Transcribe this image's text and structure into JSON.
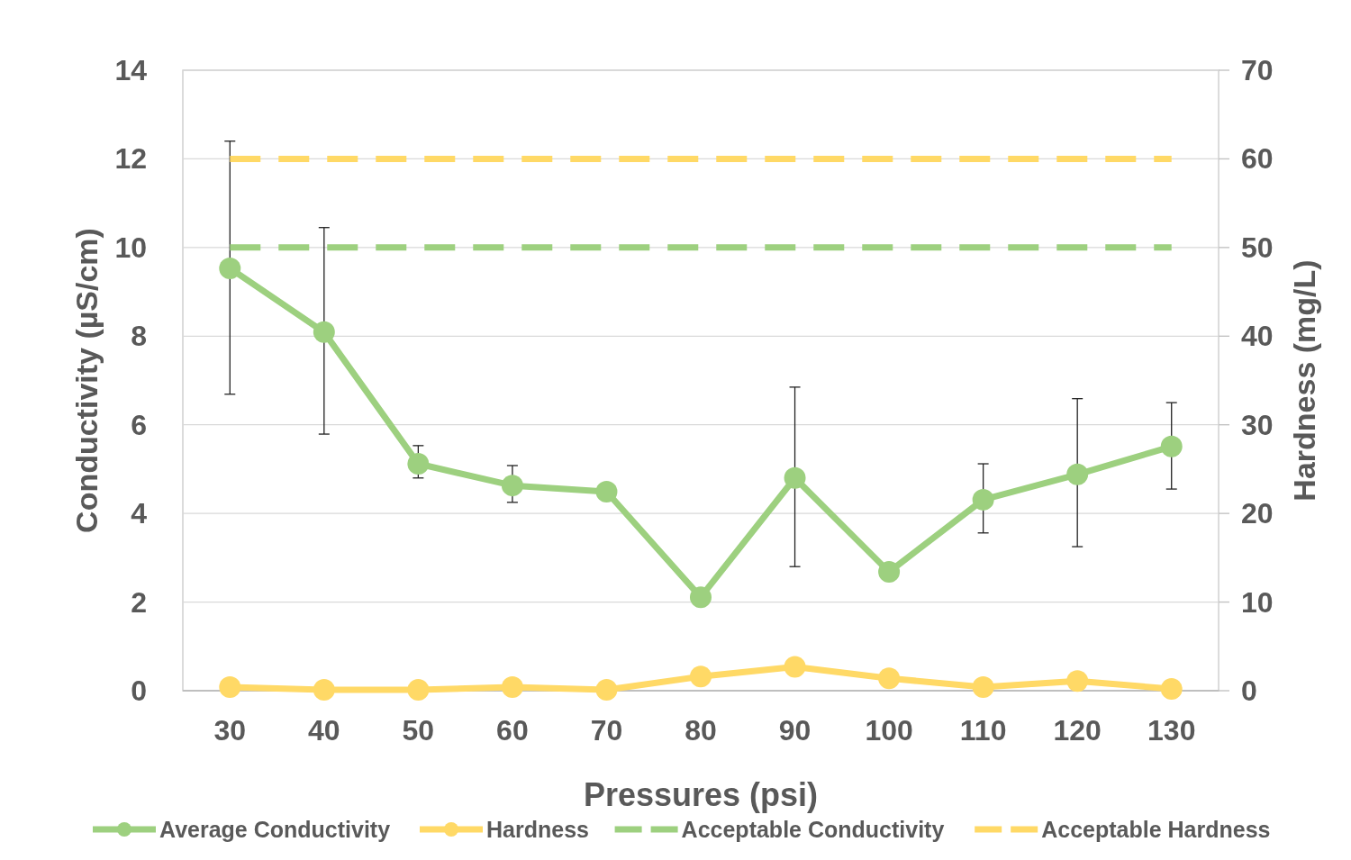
{
  "chart_data": {
    "type": "line",
    "xlabel": "Pressures (psi)",
    "ylabel": "Conductivity (µS/cm)",
    "y2label": "Hardness (mg/L)",
    "categories": [
      "30",
      "40",
      "50",
      "60",
      "70",
      "80",
      "90",
      "100",
      "110",
      "120",
      "130"
    ],
    "ylim": [
      0,
      14
    ],
    "yticks": [
      0,
      2,
      4,
      6,
      8,
      10,
      12,
      14
    ],
    "y2lim": [
      0,
      70
    ],
    "y2ticks": [
      0,
      10,
      20,
      30,
      40,
      50,
      60,
      70
    ],
    "grid": "y",
    "legend": "bottom",
    "series": [
      {
        "name": "Average Conductivity",
        "color": "#9dd07f",
        "marker": "circle",
        "line_style": "solid",
        "values": [
          9.53,
          8.09,
          5.12,
          4.63,
          4.49,
          2.11,
          4.8,
          2.68,
          4.31,
          4.88,
          5.51
        ],
        "errors": [
          [
            6.69,
            12.4
          ],
          [
            5.79,
            10.45
          ],
          [
            4.8,
            5.53
          ],
          [
            4.25,
            5.08
          ],
          null,
          null,
          [
            2.8,
            6.85
          ],
          null,
          [
            3.56,
            5.12
          ],
          [
            3.25,
            6.59
          ],
          [
            4.55,
            6.5
          ]
        ]
      },
      {
        "name": "Hardness",
        "color": "#ffd966",
        "marker": "circle",
        "line_style": "solid",
        "axis": "y2",
        "values": [
          0.4,
          0.1,
          0.1,
          0.4,
          0.1,
          1.6,
          2.7,
          1.4,
          0.4,
          1.1,
          0.2
        ]
      },
      {
        "name": "Acceptable Conductivity",
        "color": "#9dd07f",
        "marker": "none",
        "line_style": "dashed",
        "values": [
          10,
          10,
          10,
          10,
          10,
          10,
          10,
          10,
          10,
          10,
          10
        ]
      },
      {
        "name": "Acceptable Hardness",
        "color": "#ffd966",
        "marker": "none",
        "line_style": "dashed",
        "axis": "y2",
        "values": [
          60,
          60,
          60,
          60,
          60,
          60,
          60,
          60,
          60,
          60,
          60
        ]
      }
    ]
  }
}
